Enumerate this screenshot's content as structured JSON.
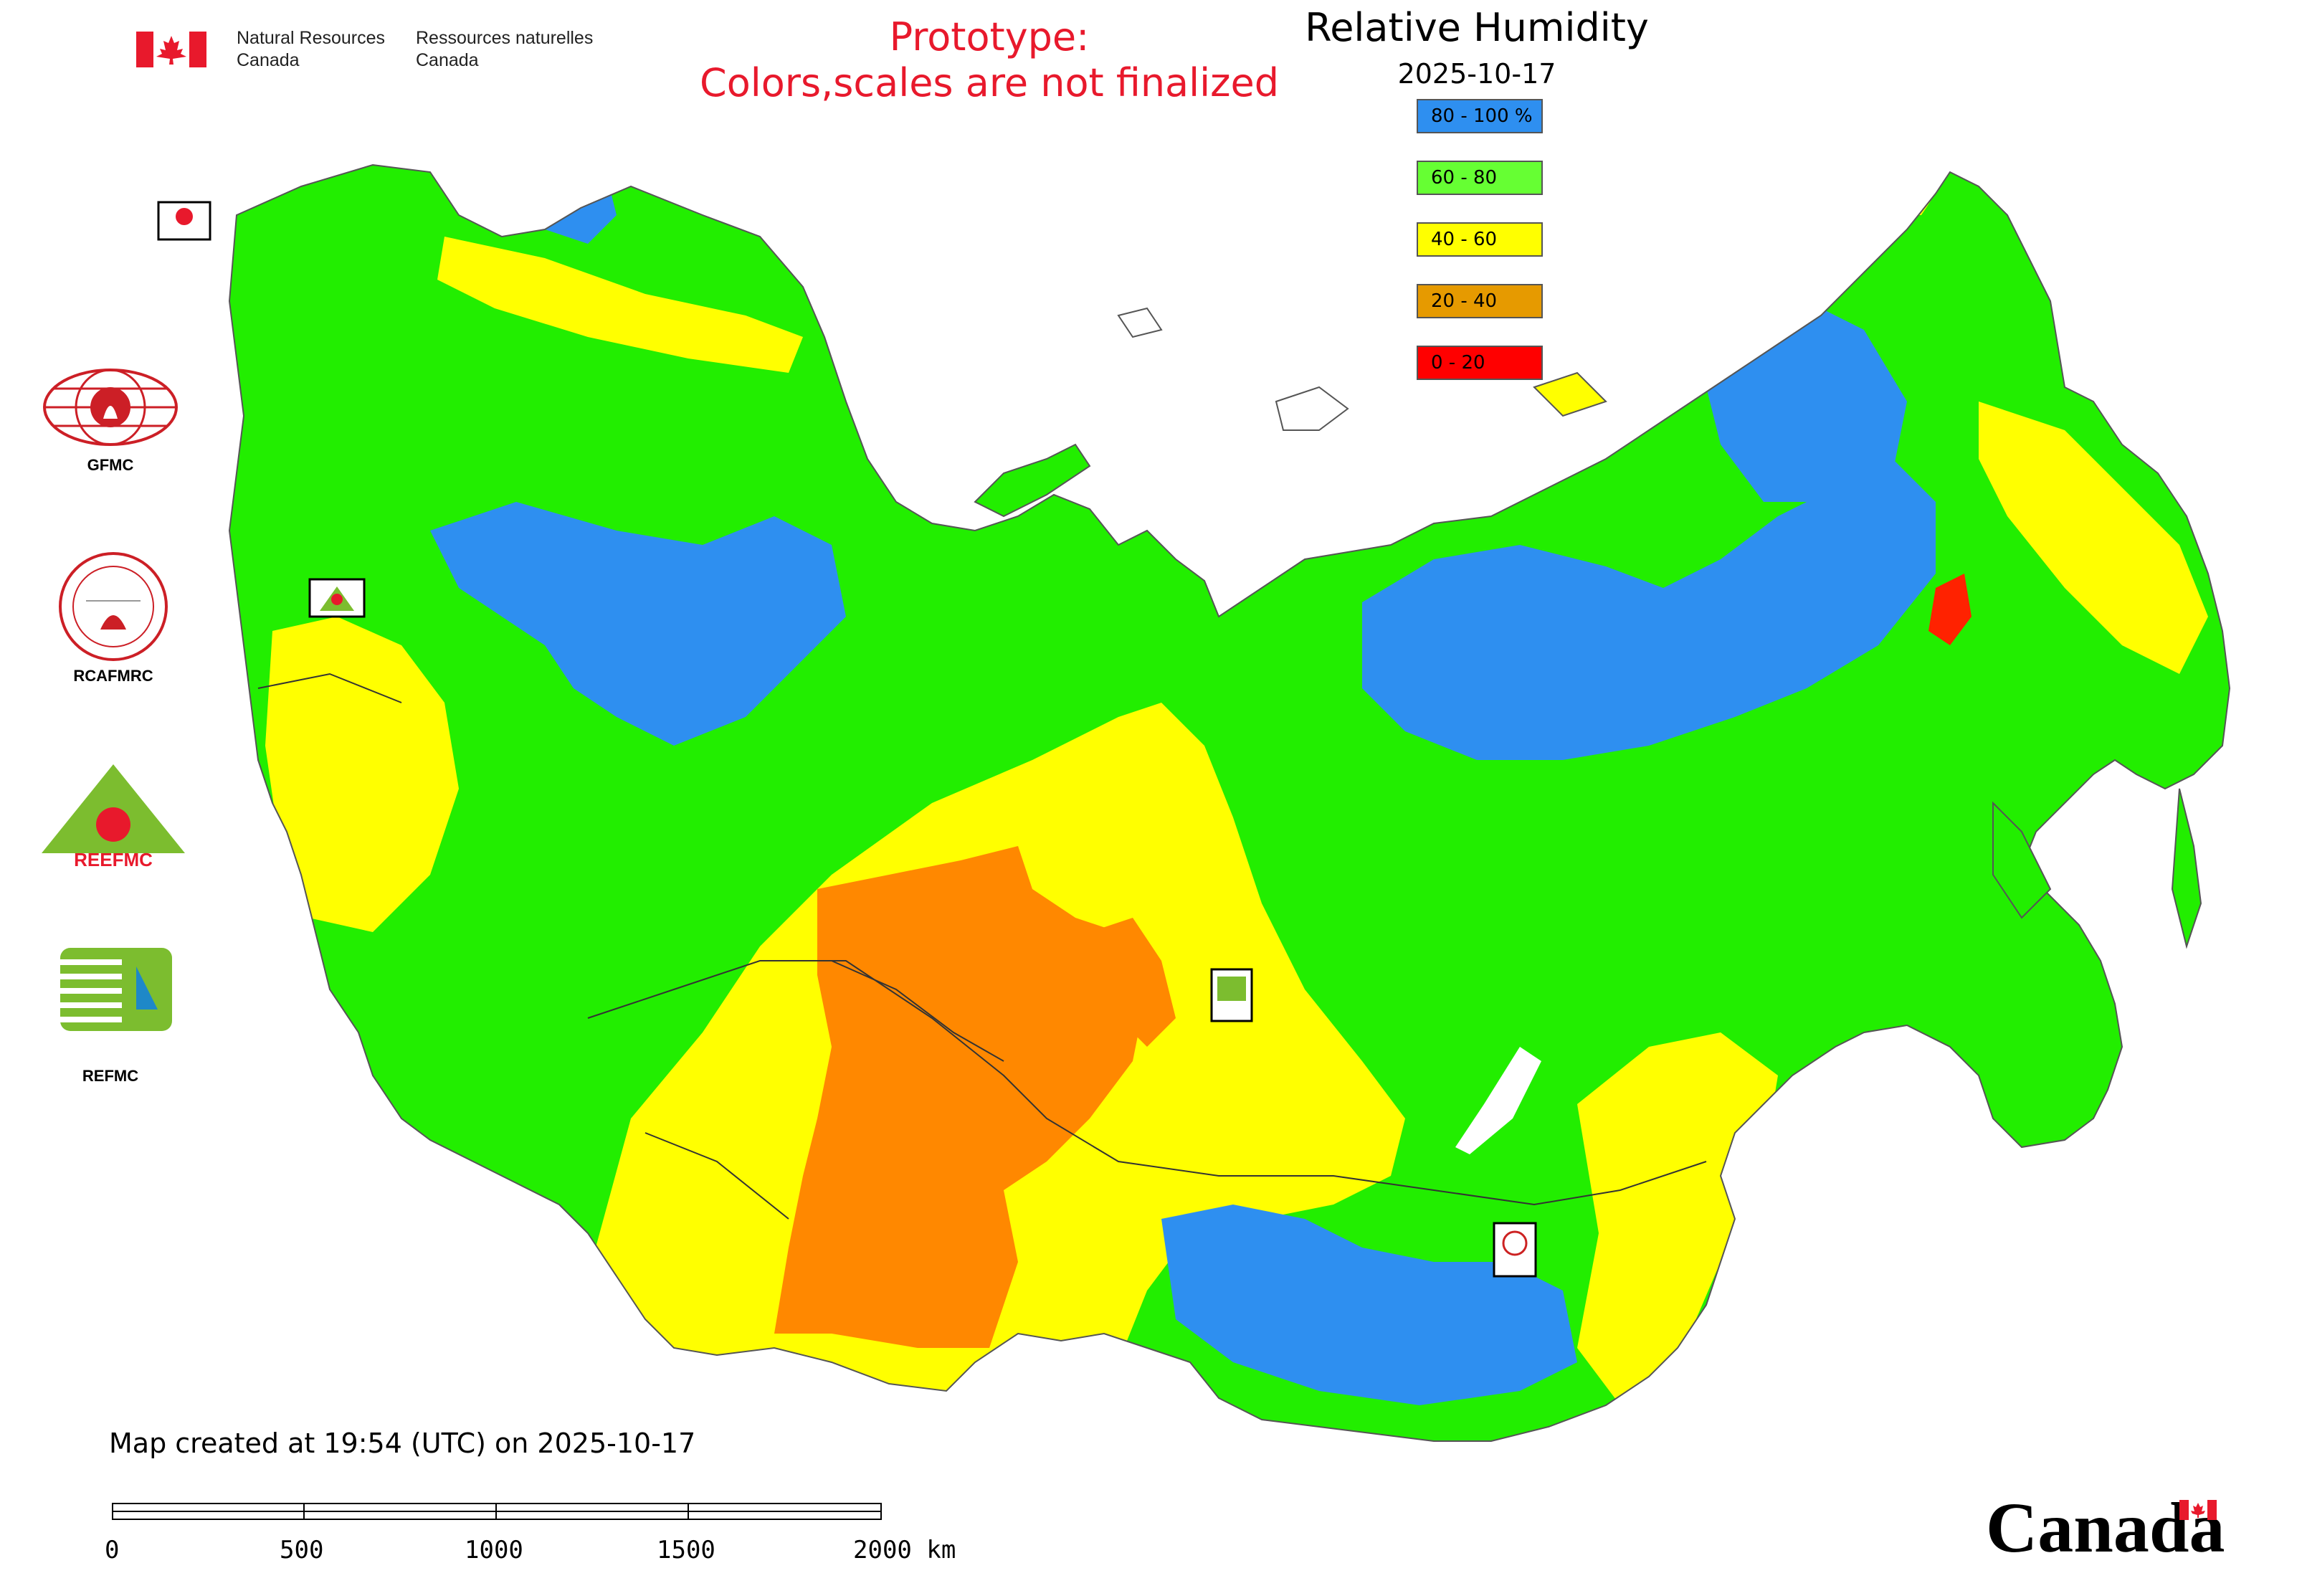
{
  "header": {
    "agency_en": [
      "Natural Resources",
      "Canada"
    ],
    "agency_fr": [
      "Ressources naturelles",
      "Canada"
    ],
    "prototype_line1": "Prototype:",
    "prototype_line2": "Colors,scales are not finalized",
    "title": "Relative Humidity",
    "date": "2025-10-17"
  },
  "legend": [
    {
      "label": "80 - 100 %",
      "color": "#2e8ff0"
    },
    {
      "label": "60 - 80",
      "color": "#66ff33"
    },
    {
      "label": "40 - 60",
      "color": "#ffff00"
    },
    {
      "label": "20 - 40",
      "color": "#e69a00"
    },
    {
      "label": "0 - 20",
      "color": "#ff0000"
    }
  ],
  "map_colors": {
    "green": "#22ee00",
    "blue": "#2e8ff0",
    "yellow": "#ffff00",
    "orange": "#ff8800",
    "red": "#ff2200",
    "water": "#ffffff",
    "border": "#333333"
  },
  "logos": {
    "gfmc": "GFMC",
    "rcafmrc": "RCAFMRC",
    "reefmc": "REEFMC",
    "refmc": "REFMC"
  },
  "footer": {
    "created": "Map created at 19:54 (UTC) on 2025-10-17",
    "scale_ticks": [
      "0",
      "500",
      "1000",
      "1500",
      "2000 km"
    ],
    "wordmark": "Canada"
  }
}
